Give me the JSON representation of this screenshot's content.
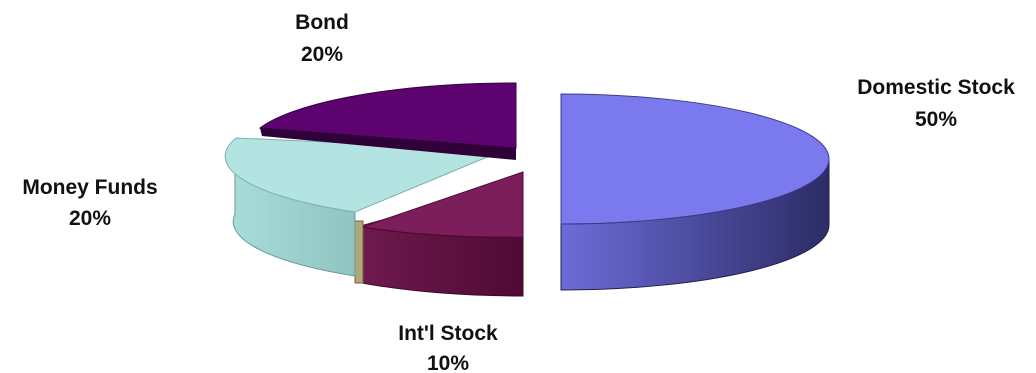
{
  "chart_data": {
    "type": "pie",
    "style": "3d-exploded",
    "slices": [
      {
        "name": "Domestic Stock",
        "value": 50,
        "label": "50%",
        "color": "#7878ec"
      },
      {
        "name": "Int'l Stock",
        "value": 10,
        "label": "10%",
        "color": "#7a1e58"
      },
      {
        "name": "Money Funds",
        "value": 20,
        "label": "20%",
        "color": "#b1e2e0"
      },
      {
        "name": "Bond",
        "value": 20,
        "label": "20%",
        "color": "#5e0470"
      }
    ],
    "legend": "none"
  }
}
